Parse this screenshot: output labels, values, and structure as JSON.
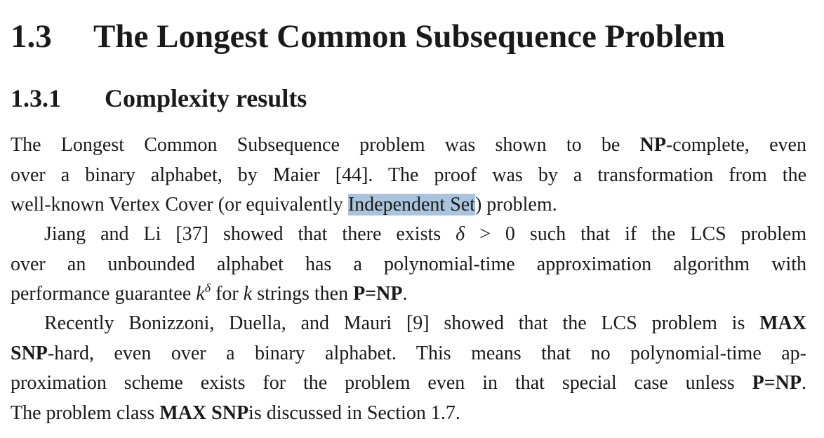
{
  "section": {
    "number": "1.3",
    "title": "The Longest Common Subsequence Problem"
  },
  "subsection": {
    "number": "1.3.1",
    "title": "Complexity results"
  },
  "paragraph1": {
    "l1_a": "The Longest Common Subsequence problem was shown to be ",
    "l1_b": "NP",
    "l1_c": "-complete, even",
    "l2": "over a binary alphabet, by Maier [44]. The proof was by a transformation from the",
    "l3_a": "well-known Vertex Cover (or equivalently ",
    "l3_highlight": "Independent Set",
    "l3_c": ") problem."
  },
  "paragraph2": {
    "l1_a": "Jiang and Li [37] showed that there exists ",
    "l1_delta": "δ",
    "l1_b": " > 0 such that if the LCS problem",
    "l2": "over an unbounded alphabet has a polynomial-time approximation algorithm with",
    "l3_a": "performance guarantee ",
    "l3_k": "k",
    "l3_sup": "δ",
    "l3_b": " for ",
    "l3_k2": "k",
    "l3_c": " strings then ",
    "l3_pnp": "P=NP",
    "l3_d": "."
  },
  "paragraph3": {
    "l1_a": "Recently Bonizzoni, Duella, and Mauri [9] showed that the LCS problem is ",
    "l1_b": "MAX",
    "l2_a": "SNP",
    "l2_b": "-hard, even over a binary alphabet. This means that no polynomial-time ap-",
    "l3_a": "proximation scheme exists for the problem even in that special case unless ",
    "l3_b": "P=NP",
    "l3_c": ".",
    "l4_a": "The problem class ",
    "l4_b": "MAX SNP",
    "l4_c": "is discussed in Section 1.7."
  },
  "colors": {
    "text": "#1a1a1a",
    "highlight": "#a9c4dc",
    "background": "#ffffff"
  }
}
